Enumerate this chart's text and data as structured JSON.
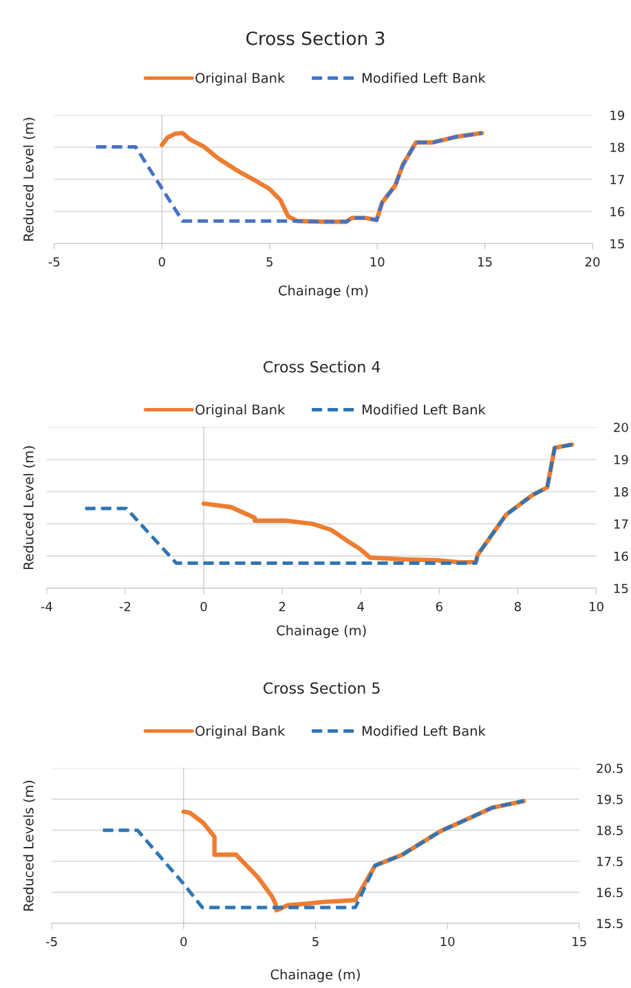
{
  "chart_data": [
    {
      "type": "line",
      "title": "Cross Section 3",
      "xlabel": "Chainage (m)",
      "ylabel": "Reduced Level (m)",
      "xlim": [
        -5,
        20
      ],
      "xticks": [
        -5,
        0,
        5,
        10,
        15,
        20
      ],
      "ylim": [
        15,
        19
      ],
      "yticks": [
        15,
        16,
        17,
        18,
        19
      ],
      "grid": "y",
      "legend": "top",
      "series": [
        {
          "name": "Original Bank",
          "color": "#ed7d31",
          "line_style": "solid",
          "x": [
            0,
            0.26,
            0.61,
            0.96,
            1.31,
            1.92,
            2.62,
            3.5,
            4.37,
            4.98,
            5.5,
            5.86,
            6.29,
            7.52,
            8.57,
            8.83,
            9.44,
            9.97,
            10.23,
            10.84,
            11.19,
            11.8,
            12.59,
            13.64,
            14.86
          ],
          "values": [
            18.07,
            18.3,
            18.42,
            18.44,
            18.24,
            18.03,
            17.65,
            17.27,
            16.95,
            16.71,
            16.36,
            15.85,
            15.7,
            15.68,
            15.68,
            15.8,
            15.8,
            15.73,
            16.28,
            16.81,
            17.45,
            18.15,
            18.15,
            18.32,
            18.44
          ]
        },
        {
          "name": "Modified Left Bank",
          "color": "#4472c4",
          "line_style": "dashed",
          "x": [
            -3.06,
            -1.22,
            0.96,
            6.29,
            7.52,
            8.57,
            8.83,
            9.44,
            9.97,
            10.23,
            10.84,
            11.19,
            11.8,
            12.59,
            13.64,
            14.86
          ],
          "values": [
            18.01,
            18.01,
            15.7,
            15.7,
            15.68,
            15.68,
            15.8,
            15.8,
            15.73,
            16.28,
            16.81,
            17.45,
            18.15,
            18.15,
            18.32,
            18.44
          ]
        }
      ]
    },
    {
      "type": "line",
      "title": "Cross Section 4",
      "xlabel": "Chainage (m)",
      "ylabel": "Reduced Level (m)",
      "xlim": [
        -4,
        10
      ],
      "xticks": [
        -4,
        -2,
        0,
        2,
        4,
        6,
        8,
        10
      ],
      "ylim": [
        15,
        20
      ],
      "yticks": [
        15,
        16,
        17,
        18,
        19,
        20
      ],
      "grid": "y",
      "legend": "top",
      "series": [
        {
          "name": "Original Bank",
          "color": "#ed7d31",
          "line_style": "solid",
          "x": [
            0,
            0.69,
            1.3,
            1.3,
            2.08,
            2.77,
            3.25,
            3.71,
            3.98,
            4.24,
            5.06,
            5.92,
            6.5,
            6.93,
            6.98,
            7.7,
            8.37,
            8.75,
            8.94,
            9.38
          ],
          "values": [
            17.63,
            17.52,
            17.19,
            17.1,
            17.1,
            17.0,
            16.81,
            16.43,
            16.22,
            15.95,
            15.9,
            15.87,
            15.81,
            15.81,
            16.04,
            17.28,
            17.89,
            18.13,
            19.36,
            19.46
          ]
        },
        {
          "name": "Modified Left Bank",
          "color": "#2e75b6",
          "line_style": "dashed",
          "x": [
            -3.02,
            -1.97,
            -0.7,
            6.93,
            6.98,
            7.7,
            8.37,
            8.75,
            8.94,
            9.38
          ],
          "values": [
            17.48,
            17.48,
            15.78,
            15.78,
            16.04,
            17.28,
            17.89,
            18.13,
            19.36,
            19.46
          ]
        }
      ]
    },
    {
      "type": "line",
      "title": "Cross Section 5",
      "xlabel": "Chainage (m)",
      "ylabel": "Reduced Levels (m)",
      "xlim": [
        -5,
        15
      ],
      "xticks": [
        -5,
        0,
        5,
        10,
        15
      ],
      "ylim": [
        15.5,
        20.5
      ],
      "yticks": [
        15.5,
        16.5,
        17.5,
        18.5,
        19.5,
        20.5
      ],
      "grid": "y",
      "legend": "top",
      "series": [
        {
          "name": "Original Bank",
          "color": "#ed7d31",
          "line_style": "solid",
          "x": [
            0,
            0.24,
            0.74,
            1.17,
            1.17,
            1.99,
            2.81,
            3.33,
            3.48,
            3.52,
            3.95,
            4.66,
            5.3,
            6.01,
            6.51,
            7.26,
            8.29,
            8.86,
            9.74,
            10.71,
            11.71,
            12.89
          ],
          "values": [
            19.1,
            19.06,
            18.74,
            18.29,
            17.71,
            17.71,
            16.99,
            16.39,
            16.14,
            15.92,
            16.08,
            16.13,
            16.19,
            16.22,
            16.25,
            17.36,
            17.71,
            18.01,
            18.47,
            18.84,
            19.23,
            19.44
          ]
        },
        {
          "name": "Modified Left Bank",
          "color": "#2e75b6",
          "line_style": "dashed",
          "x": [
            -3.06,
            -1.75,
            0,
            0.71,
            6.51,
            7.26,
            8.29,
            8.86,
            9.74,
            10.71,
            11.71,
            12.89
          ],
          "values": [
            18.5,
            18.5,
            16.77,
            16.01,
            16.01,
            17.36,
            17.71,
            18.01,
            18.47,
            18.84,
            19.23,
            19.44
          ]
        }
      ]
    }
  ]
}
